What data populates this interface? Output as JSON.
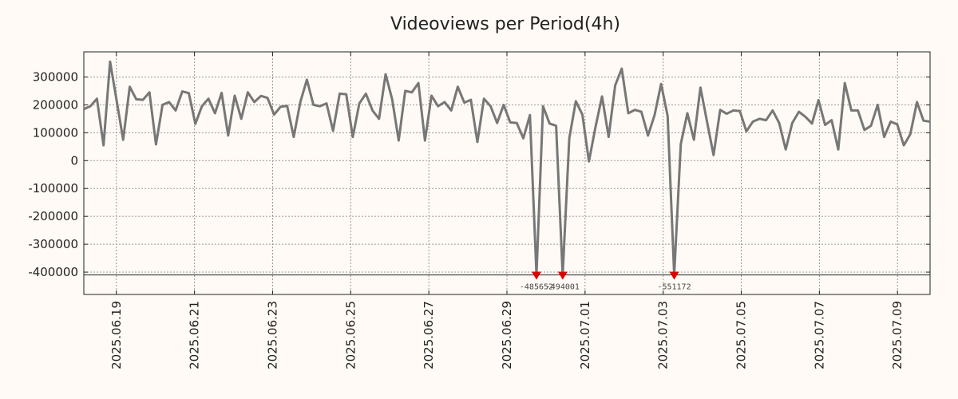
{
  "chart_data": {
    "type": "line",
    "title": "Videoviews per Period(4h)",
    "xlabel": "",
    "ylabel": "",
    "ylim": [
      -480000,
      390000
    ],
    "clip_floor": -410000,
    "yticks": [
      300000,
      200000,
      100000,
      0,
      -100000,
      -200000,
      -300000,
      -400000
    ],
    "ytick_labels": [
      "300000",
      "200000",
      "100000",
      "0",
      "-100000",
      "-200000",
      "-300000",
      "-400000"
    ],
    "x_start": "2025.06.18 04:00",
    "x_end": "2025.07.09 20:00",
    "xticks": [
      "2025.06.19",
      "2025.06.21",
      "2025.06.23",
      "2025.06.25",
      "2025.06.27",
      "2025.06.29",
      "2025.07.01",
      "2025.07.03",
      "2025.07.05",
      "2025.07.07",
      "2025.07.09"
    ],
    "series": [
      {
        "name": "Videoviews",
        "color": "#777777",
        "values": [
          185000,
          195000,
          222000,
          55000,
          355000,
          215000,
          75000,
          265000,
          220000,
          218000,
          245000,
          58000,
          200000,
          210000,
          180000,
          248000,
          242000,
          132000,
          195000,
          222000,
          170000,
          243000,
          90000,
          233000,
          150000,
          245000,
          210000,
          232000,
          225000,
          165000,
          193000,
          196000,
          85000,
          210000,
          290000,
          200000,
          195000,
          205000,
          107000,
          240000,
          238000,
          85000,
          205000,
          240000,
          180000,
          150000,
          310000,
          220000,
          72000,
          250000,
          245000,
          278000,
          72000,
          233000,
          195000,
          210000,
          180000,
          265000,
          208000,
          218000,
          67000,
          222000,
          195000,
          135000,
          200000,
          137000,
          135000,
          80000,
          163000,
          -485652,
          195000,
          133000,
          125000,
          -494001,
          80000,
          213000,
          165000,
          -3000,
          120000,
          230000,
          85000,
          270000,
          330000,
          170000,
          182000,
          175000,
          90000,
          163000,
          275000,
          160000,
          -551172,
          60000,
          170000,
          75000,
          262000,
          140000,
          20000,
          182000,
          168000,
          180000,
          178000,
          105000,
          140000,
          150000,
          145000,
          180000,
          135000,
          40000,
          135000,
          175000,
          157000,
          133000,
          217000,
          128000,
          145000,
          40000,
          278000,
          180000,
          180000,
          110000,
          125000,
          200000,
          85000,
          140000,
          130000,
          55000,
          95000,
          210000,
          143000,
          140000
        ]
      }
    ],
    "clipped_markers": [
      {
        "index": 69,
        "value": -485652,
        "label": "-485652"
      },
      {
        "index": 73,
        "value": -494001,
        "label": "-494001"
      },
      {
        "index": 90,
        "value": -551172,
        "label": "-551172"
      }
    ],
    "marker_color": "#dd0000",
    "grid": true,
    "legend": "none"
  }
}
